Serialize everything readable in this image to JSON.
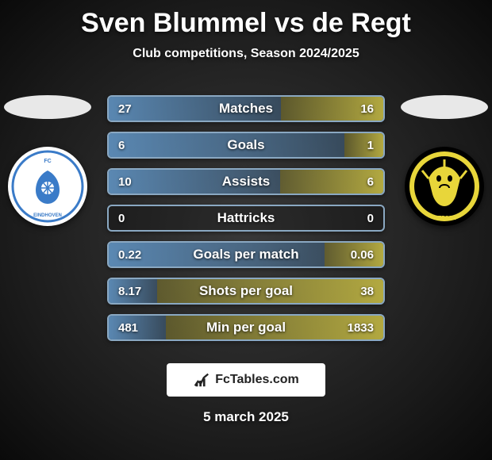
{
  "title": "Sven Blummel vs de Regt",
  "subtitle": "Club competitions, Season 2024/2025",
  "date": "5 march 2025",
  "footer_logo_text": "FcTables.com",
  "colors": {
    "player1_accent": "#6aa3d8",
    "player2_accent": "#d8cc4a",
    "bar_border": "#8aa8c2",
    "title_color": "#ffffff"
  },
  "player1": {
    "club_name": "FC EINDHOVEN",
    "badge_bg": "#ffffff",
    "badge_fg": "#3a7bc8",
    "ellipse_bg": "#e8e8e8"
  },
  "player2": {
    "club_name": "VITESSE",
    "badge_bg": "#e8d63a",
    "badge_fg": "#000000",
    "ellipse_bg": "#e8e8e8"
  },
  "stats": [
    {
      "label": "Matches",
      "left_val": "27",
      "right_val": "16",
      "left_num": 27,
      "right_num": 16
    },
    {
      "label": "Goals",
      "left_val": "6",
      "right_val": "1",
      "left_num": 6,
      "right_num": 1
    },
    {
      "label": "Assists",
      "left_val": "10",
      "right_val": "6",
      "left_num": 10,
      "right_num": 6
    },
    {
      "label": "Hattricks",
      "left_val": "0",
      "right_val": "0",
      "left_num": 0,
      "right_num": 0
    },
    {
      "label": "Goals per match",
      "left_val": "0.22",
      "right_val": "0.06",
      "left_num": 0.22,
      "right_num": 0.06
    },
    {
      "label": "Shots per goal",
      "left_val": "8.17",
      "right_val": "38",
      "left_num": 8.17,
      "right_num": 38
    },
    {
      "label": "Min per goal",
      "left_val": "481",
      "right_val": "1833",
      "left_num": 481,
      "right_num": 1833
    }
  ],
  "typography": {
    "title_fontsize": 34,
    "subtitle_fontsize": 16,
    "label_fontsize": 17,
    "value_fontsize": 15,
    "date_fontsize": 17
  }
}
